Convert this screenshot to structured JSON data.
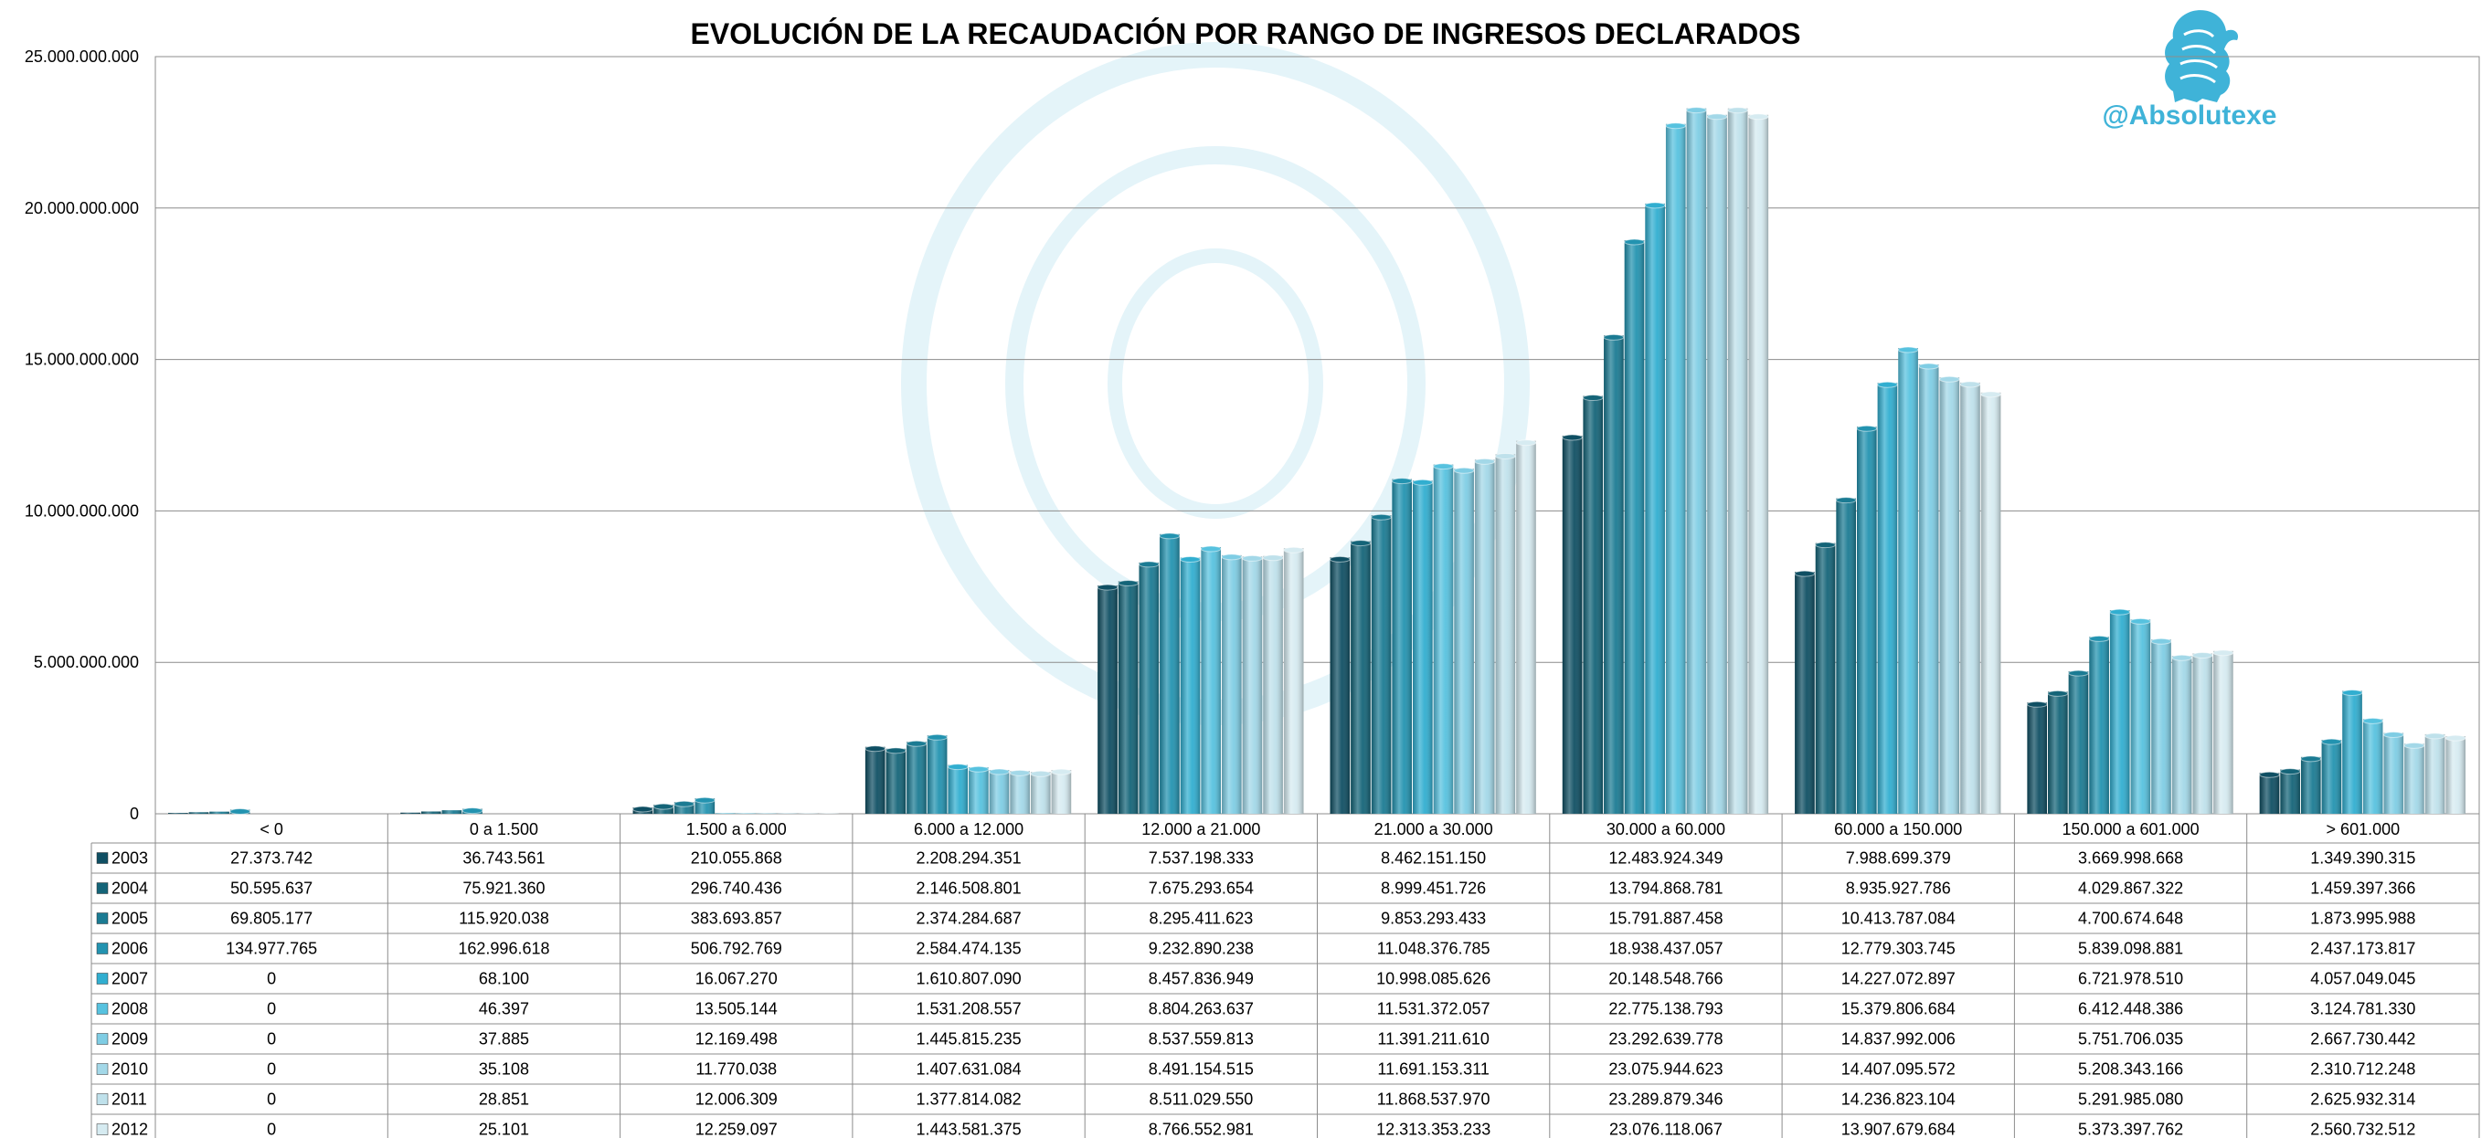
{
  "logo": {
    "handle": "@Absolutexe",
    "icon": "griffin-logo-icon"
  },
  "colors": {
    "series": [
      "#0f4f63",
      "#146478",
      "#1b7b93",
      "#2393b0",
      "#31aed0",
      "#57c2df",
      "#7fcde4",
      "#a3d8e8",
      "#bfe1eb",
      "#d6ebf1"
    ],
    "grid": "#8c8c8c",
    "watermark": "#e4f4f9"
  },
  "chart_data": {
    "type": "bar",
    "title": "EVOLUCIÓN DE LA RECAUDACIÓN POR RANGO DE INGRESOS DECLARADOS",
    "xlabel": "",
    "ylabel": "",
    "ylim": [
      0,
      25000000000
    ],
    "yticks": [
      0,
      5000000000,
      10000000000,
      15000000000,
      20000000000,
      25000000000
    ],
    "ytick_labels": [
      "0",
      "5.000.000.000",
      "10.000.000.000",
      "15.000.000.000",
      "20.000.000.000",
      "25.000.000.000"
    ],
    "grid": true,
    "legend": "data-table",
    "categories": [
      "< 0",
      "0 a 1.500",
      "1.500 a 6.000",
      "6.000 a 12.000",
      "12.000 a 21.000",
      "21.000 a 30.000",
      "30.000 a 60.000",
      "60.000 a 150.000",
      "150.000 a 601.000",
      "> 601.000"
    ],
    "series": [
      {
        "name": "2003",
        "values": [
          27373742,
          36743561,
          210055868,
          2208294351,
          7537198333,
          8462151150,
          12483924349,
          7988699379,
          3669998668,
          1349390315
        ],
        "labels": [
          "27.373.742",
          "36.743.561",
          "210.055.868",
          "2.208.294.351",
          "7.537.198.333",
          "8.462.151.150",
          "12.483.924.349",
          "7.988.699.379",
          "3.669.998.668",
          "1.349.390.315"
        ]
      },
      {
        "name": "2004",
        "values": [
          50595637,
          75921360,
          296740436,
          2146508801,
          7675293654,
          8999451726,
          13794868781,
          8935927786,
          4029867322,
          1459397366
        ],
        "labels": [
          "50.595.637",
          "75.921.360",
          "296.740.436",
          "2.146.508.801",
          "7.675.293.654",
          "8.999.451.726",
          "13.794.868.781",
          "8.935.927.786",
          "4.029.867.322",
          "1.459.397.366"
        ]
      },
      {
        "name": "2005",
        "values": [
          69805177,
          115920038,
          383693857,
          2374284687,
          8295411623,
          9853293433,
          15791887458,
          10413787084,
          4700674648,
          1873995988
        ],
        "labels": [
          "69.805.177",
          "115.920.038",
          "383.693.857",
          "2.374.284.687",
          "8.295.411.623",
          "9.853.293.433",
          "15.791.887.458",
          "10.413.787.084",
          "4.700.674.648",
          "1.873.995.988"
        ]
      },
      {
        "name": "2006",
        "values": [
          134977765,
          162996618,
          506792769,
          2584474135,
          9232890238,
          11048376785,
          18938437057,
          12779303745,
          5839098881,
          2437173817
        ],
        "labels": [
          "134.977.765",
          "162.996.618",
          "506.792.769",
          "2.584.474.135",
          "9.232.890.238",
          "11.048.376.785",
          "18.938.437.057",
          "12.779.303.745",
          "5.839.098.881",
          "2.437.173.817"
        ]
      },
      {
        "name": "2007",
        "values": [
          0,
          68100,
          16067270,
          1610807090,
          8457836949,
          10998085626,
          20148548766,
          14227072897,
          6721978510,
          4057049045
        ],
        "labels": [
          "0",
          "68.100",
          "16.067.270",
          "1.610.807.090",
          "8.457.836.949",
          "10.998.085.626",
          "20.148.548.766",
          "14.227.072.897",
          "6.721.978.510",
          "4.057.049.045"
        ]
      },
      {
        "name": "2008",
        "values": [
          0,
          46397,
          13505144,
          1531208557,
          8804263637,
          11531372057,
          22775138793,
          15379806684,
          6412448386,
          3124781330
        ],
        "labels": [
          "0",
          "46.397",
          "13.505.144",
          "1.531.208.557",
          "8.804.263.637",
          "11.531.372.057",
          "22.775.138.793",
          "15.379.806.684",
          "6.412.448.386",
          "3.124.781.330"
        ]
      },
      {
        "name": "2009",
        "values": [
          0,
          37885,
          12169498,
          1445815235,
          8537559813,
          11391211610,
          23292639778,
          14837992006,
          5751706035,
          2667730442
        ],
        "labels": [
          "0",
          "37.885",
          "12.169.498",
          "1.445.815.235",
          "8.537.559.813",
          "11.391.211.610",
          "23.292.639.778",
          "14.837.992.006",
          "5.751.706.035",
          "2.667.730.442"
        ]
      },
      {
        "name": "2010",
        "values": [
          0,
          35108,
          11770038,
          1407631084,
          8491154515,
          11691153311,
          23075944623,
          14407095572,
          5208343166,
          2310712248
        ],
        "labels": [
          "0",
          "35.108",
          "11.770.038",
          "1.407.631.084",
          "8.491.154.515",
          "11.691.153.311",
          "23.075.944.623",
          "14.407.095.572",
          "5.208.343.166",
          "2.310.712.248"
        ]
      },
      {
        "name": "2011",
        "values": [
          0,
          28851,
          12006309,
          1377814082,
          8511029550,
          11868537970,
          23289879346,
          14236823104,
          5291985080,
          2625932314
        ],
        "labels": [
          "0",
          "28.851",
          "12.006.309",
          "1.377.814.082",
          "8.511.029.550",
          "11.868.537.970",
          "23.289.879.346",
          "14.236.823.104",
          "5.291.985.080",
          "2.625.932.314"
        ]
      },
      {
        "name": "2012",
        "values": [
          0,
          25101,
          12259097,
          1443581375,
          8766552981,
          12313353233,
          23076118067,
          13907679684,
          5373397762,
          2560732512
        ],
        "labels": [
          "0",
          "25.101",
          "12.259.097",
          "1.443.581.375",
          "8.766.552.981",
          "12.313.353.233",
          "23.076.118.067",
          "13.907.679.684",
          "5.373.397.762",
          "2.560.732.512"
        ]
      }
    ]
  }
}
